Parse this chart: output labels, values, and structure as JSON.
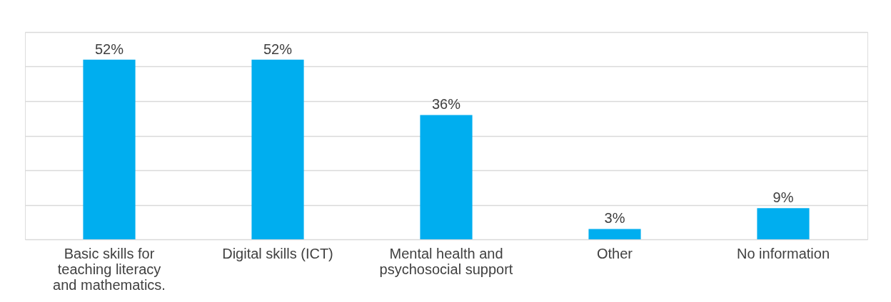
{
  "chart_data": {
    "type": "bar",
    "categories": [
      "Basic skills for teaching literacy and mathematics.",
      "Digital skills (ICT)",
      "Mental health and psychosocial support",
      "Other",
      "No information"
    ],
    "values": [
      52,
      52,
      36,
      3,
      9
    ],
    "value_labels": [
      "52%",
      "52%",
      "36%",
      "3%",
      "9%"
    ],
    "color": "#00aeef",
    "ylim": [
      0,
      60
    ],
    "yticks": [
      {
        "value": 0,
        "label": null
      },
      {
        "value": 10,
        "label": null
      },
      {
        "value": 20,
        "label": null
      },
      {
        "value": 30,
        "label": null
      },
      {
        "value": 40,
        "label": null
      },
      {
        "value": 50,
        "label": null
      },
      {
        "value": 60,
        "label": null
      }
    ],
    "grid": "y",
    "tick_labels": "x"
  }
}
